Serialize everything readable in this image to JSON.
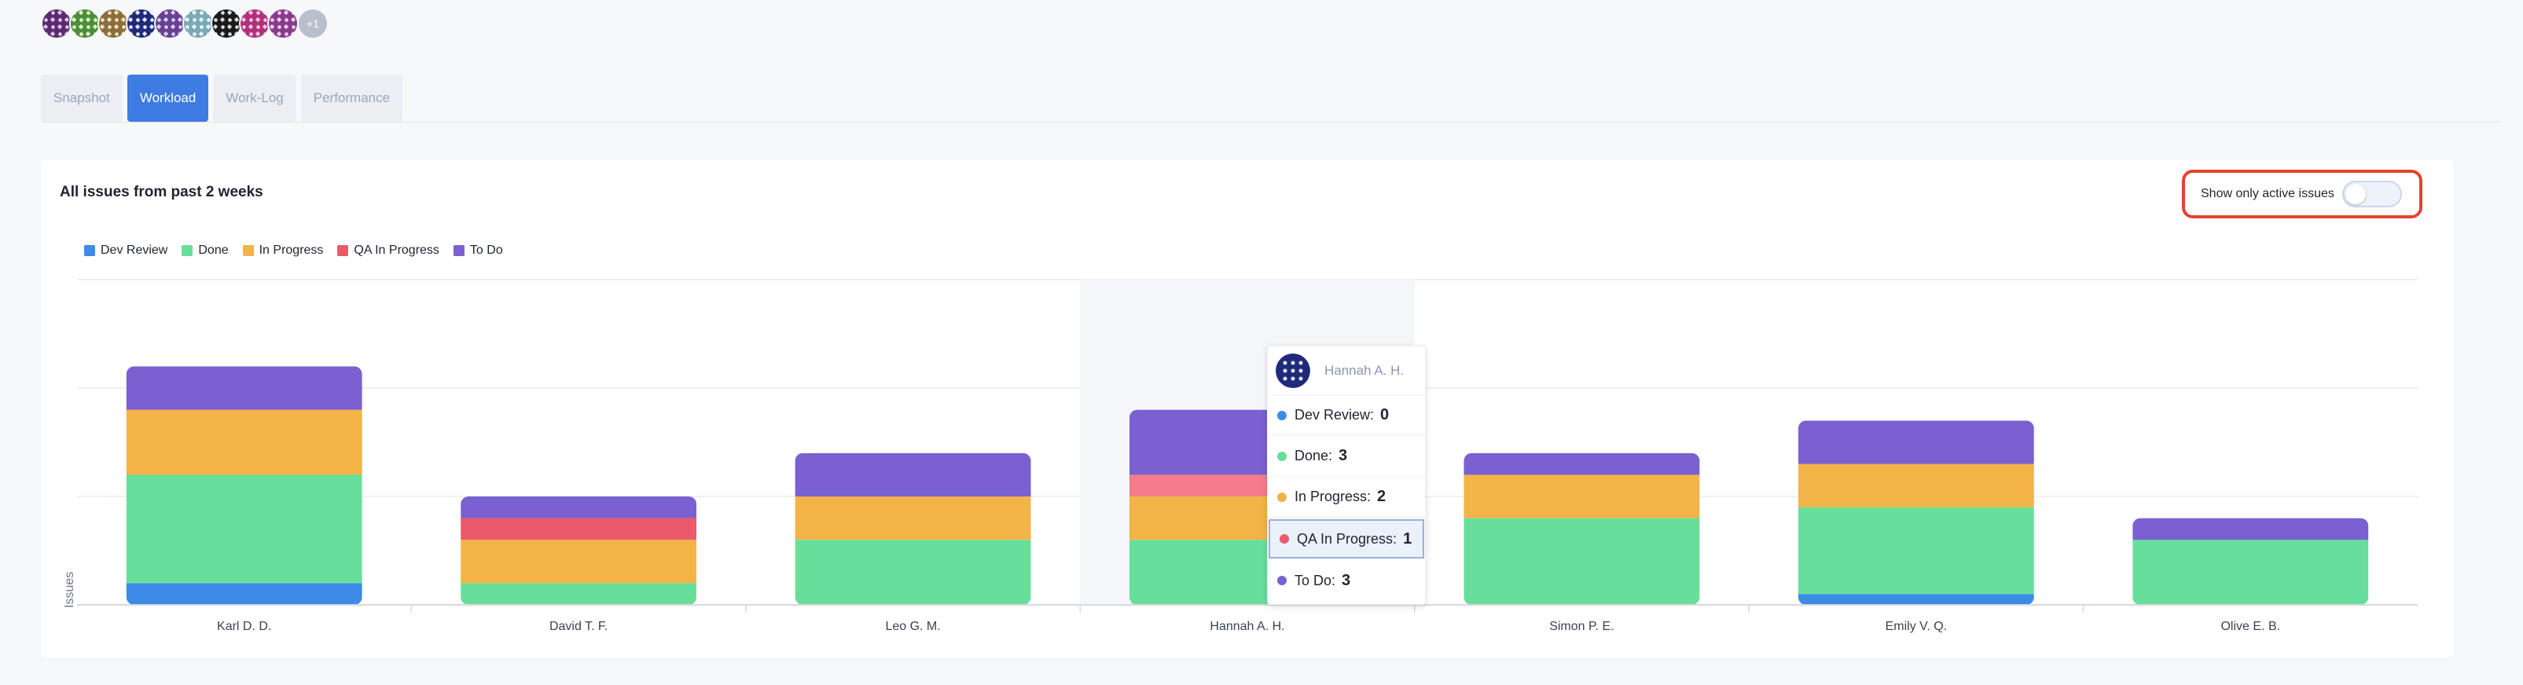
{
  "avatars": {
    "shown": [
      {
        "color": "#5b2a6e",
        "pattern": "#d9c4e8"
      },
      {
        "color": "#4a8f3c",
        "pattern": "#e7f2c6"
      },
      {
        "color": "#8a6d3b",
        "pattern": "#f1e2c3"
      },
      {
        "color": "#1f2a7a",
        "pattern": "#e6e8f7"
      },
      {
        "color": "#6a3f8f",
        "pattern": "#cfd3ff"
      },
      {
        "color": "#7aa9b7",
        "pattern": "#eef6f8"
      },
      {
        "color": "#1a1a1a",
        "pattern": "#dcdcdc"
      },
      {
        "color": "#b0317a",
        "pattern": "#f5c8e1"
      },
      {
        "color": "#8a3a8a",
        "pattern": "#efd2ef"
      }
    ],
    "more_label": "+1"
  },
  "tabs": [
    {
      "label": "Snapshot",
      "active": false
    },
    {
      "label": "Workload",
      "active": true
    },
    {
      "label": "Work-Log",
      "active": false
    },
    {
      "label": "Performance",
      "active": false
    }
  ],
  "card": {
    "title": "All issues from past 2 weeks",
    "active_toggle_label": "Show only active issues",
    "active_toggle_on": false
  },
  "chart_data": {
    "type": "bar",
    "stacked": true,
    "ylabel": "Issues",
    "xlabel": "",
    "categories": [
      "Karl D. D.",
      "David T. F.",
      "Leo G. M.",
      "Hannah A. H.",
      "Simon P. E.",
      "Emily V. Q.",
      "Olive E. B."
    ],
    "series": [
      {
        "name": "Dev Review",
        "color": "#3d8be6",
        "values": [
          1,
          0,
          0,
          0,
          0,
          0.5,
          0
        ]
      },
      {
        "name": "Done",
        "color": "#67df9a",
        "values": [
          5,
          1,
          3,
          3,
          4,
          4,
          3
        ]
      },
      {
        "name": "In Progress",
        "color": "#f2b347",
        "values": [
          3,
          2,
          2,
          2,
          2,
          2,
          0
        ]
      },
      {
        "name": "QA In Progress",
        "color": "#eb5a6a",
        "values": [
          0,
          1,
          0,
          1,
          0,
          0,
          0
        ]
      },
      {
        "name": "To Do",
        "color": "#7b60d1",
        "values": [
          2,
          1,
          2,
          3,
          1,
          2,
          1
        ]
      }
    ],
    "ylim": [
      0,
      15
    ],
    "grid": true,
    "legend": "top-left",
    "highlighted_category": "Hannah A. H."
  },
  "tooltip": {
    "name": "Hannah A. H.",
    "rows": [
      {
        "label": "Dev Review:",
        "value": "0",
        "color": "#3d8be6",
        "highlight": false
      },
      {
        "label": "Done:",
        "value": "3",
        "color": "#67df9a",
        "highlight": false
      },
      {
        "label": "In Progress:",
        "value": "2",
        "color": "#f2b347",
        "highlight": false
      },
      {
        "label": "QA In Progress:",
        "value": "1",
        "color": "#eb5a6a",
        "highlight": true
      },
      {
        "label": "To Do:",
        "value": "3",
        "color": "#7b60d1",
        "highlight": false
      }
    ]
  }
}
